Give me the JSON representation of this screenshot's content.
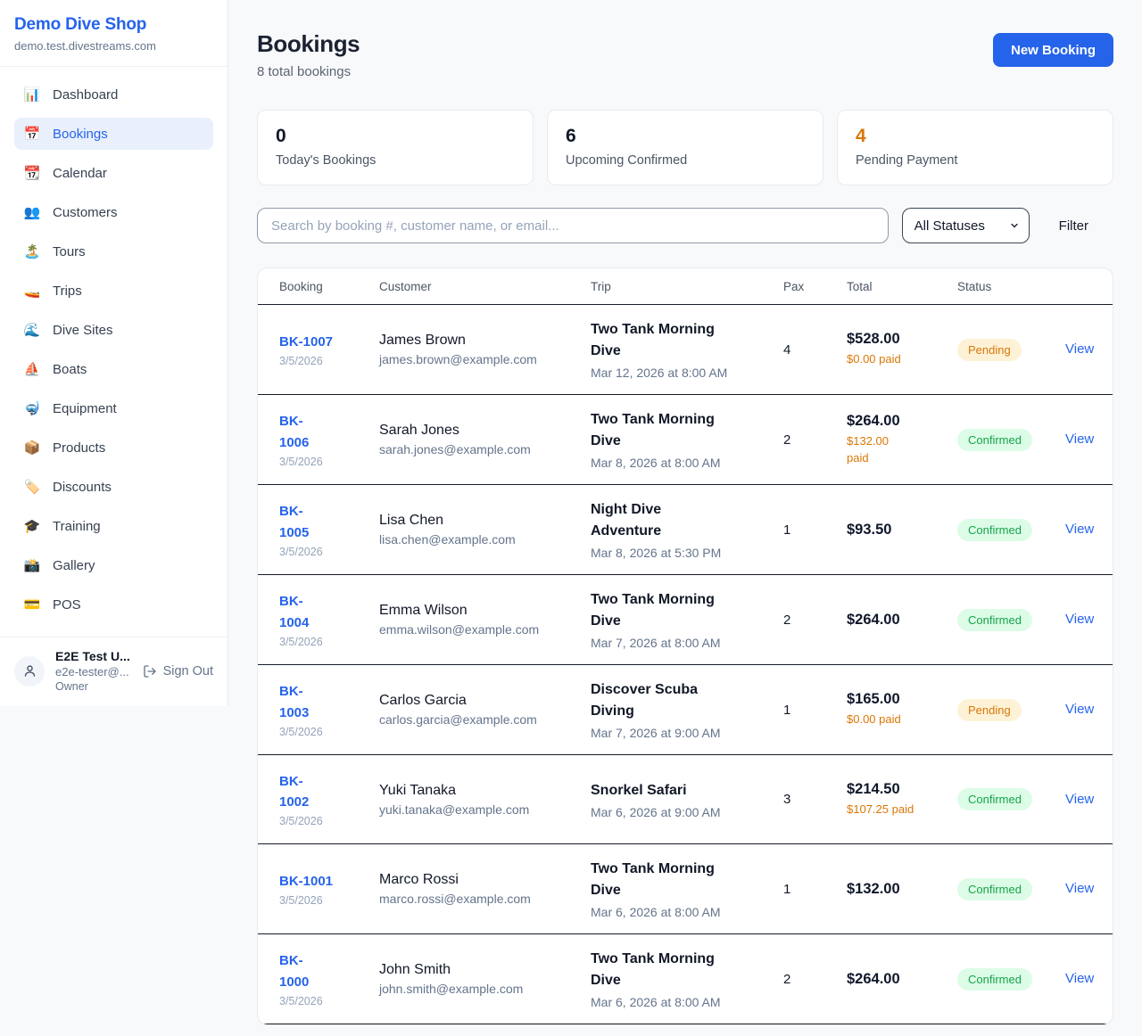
{
  "brand": {
    "name": "Demo Dive Shop",
    "domain": "demo.test.divestreams.com"
  },
  "sidebar": {
    "items": [
      {
        "label": "Dashboard",
        "icon": "📊",
        "icon_name": "bar-chart-icon"
      },
      {
        "label": "Bookings",
        "icon": "📅",
        "icon_name": "calendar-icon",
        "active": true
      },
      {
        "label": "Calendar",
        "icon": "📆",
        "icon_name": "tear-off-calendar-icon"
      },
      {
        "label": "Customers",
        "icon": "👥",
        "icon_name": "people-icon"
      },
      {
        "label": "Tours",
        "icon": "🏝️",
        "icon_name": "island-icon"
      },
      {
        "label": "Trips",
        "icon": "🚤",
        "icon_name": "speedboat-icon"
      },
      {
        "label": "Dive Sites",
        "icon": "🌊",
        "icon_name": "wave-icon"
      },
      {
        "label": "Boats",
        "icon": "⛵",
        "icon_name": "sailboat-icon"
      },
      {
        "label": "Equipment",
        "icon": "🤿",
        "icon_name": "diving-mask-icon"
      },
      {
        "label": "Products",
        "icon": "📦",
        "icon_name": "package-icon"
      },
      {
        "label": "Discounts",
        "icon": "🏷️",
        "icon_name": "tag-icon"
      },
      {
        "label": "Training",
        "icon": "🎓",
        "icon_name": "graduation-cap-icon"
      },
      {
        "label": "Gallery",
        "icon": "📸",
        "icon_name": "camera-icon"
      },
      {
        "label": "POS",
        "icon": "💳",
        "icon_name": "credit-card-icon"
      }
    ],
    "user": {
      "name": "E2E Test U...",
      "email": "e2e-tester@...",
      "role": "Owner",
      "sign_out": "Sign Out"
    }
  },
  "header": {
    "title": "Bookings",
    "subtitle": "8 total bookings",
    "new_booking": "New Booking"
  },
  "stats": [
    {
      "value": "0",
      "label": "Today's Bookings",
      "color": "#111827"
    },
    {
      "value": "6",
      "label": "Upcoming Confirmed",
      "color": "#111827"
    },
    {
      "value": "4",
      "label": "Pending Payment",
      "color": "#d97706"
    }
  ],
  "filters": {
    "search_placeholder": "Search by booking #, customer name, or email...",
    "status_select": "All Statuses",
    "filter_button": "Filter"
  },
  "table": {
    "headers": [
      "Booking",
      "Customer",
      "Trip",
      "Pax",
      "Total",
      "Status"
    ],
    "view_label": "View",
    "status_styles": {
      "Pending": {
        "bg": "#fdf2d6",
        "color": "#d97706"
      },
      "Confirmed": {
        "bg": "#dcfce7",
        "color": "#16a34a"
      }
    },
    "rows": [
      {
        "id": "BK-1007",
        "id_wrapped": false,
        "date": "3/5/2026",
        "customer": "James Brown",
        "email": "james.brown@example.com",
        "trip": "Two Tank Morning Dive",
        "trip_datetime": "Mar 12, 2026 at 8:00 AM",
        "pax": "4",
        "total": "$528.00",
        "paid": "$0.00 paid",
        "paid_wrapped": false,
        "status": "Pending"
      },
      {
        "id": "BK-1006",
        "id_wrapped": true,
        "date": "3/5/2026",
        "customer": "Sarah Jones",
        "email": "sarah.jones@example.com",
        "trip": "Two Tank Morning Dive",
        "trip_datetime": "Mar 8, 2026 at 8:00 AM",
        "pax": "2",
        "total": "$264.00",
        "paid": "$132.00 paid",
        "paid_wrapped": true,
        "status": "Confirmed"
      },
      {
        "id": "BK-1005",
        "id_wrapped": true,
        "date": "3/5/2026",
        "customer": "Lisa Chen",
        "email": "lisa.chen@example.com",
        "trip": "Night Dive Adventure",
        "trip_datetime": "Mar 8, 2026 at 5:30 PM",
        "pax": "1",
        "total": "$93.50",
        "paid": null,
        "paid_wrapped": false,
        "status": "Confirmed"
      },
      {
        "id": "BK-1004",
        "id_wrapped": true,
        "date": "3/5/2026",
        "customer": "Emma Wilson",
        "email": "emma.wilson@example.com",
        "trip": "Two Tank Morning Dive",
        "trip_datetime": "Mar 7, 2026 at 8:00 AM",
        "pax": "2",
        "total": "$264.00",
        "paid": null,
        "paid_wrapped": false,
        "status": "Confirmed"
      },
      {
        "id": "BK-1003",
        "id_wrapped": true,
        "date": "3/5/2026",
        "customer": "Carlos Garcia",
        "email": "carlos.garcia@example.com",
        "trip": "Discover Scuba Diving",
        "trip_datetime": "Mar 7, 2026 at 9:00 AM",
        "pax": "1",
        "total": "$165.00",
        "paid": "$0.00 paid",
        "paid_wrapped": false,
        "status": "Pending"
      },
      {
        "id": "BK-1002",
        "id_wrapped": true,
        "date": "3/5/2026",
        "customer": "Yuki Tanaka",
        "email": "yuki.tanaka@example.com",
        "trip": "Snorkel Safari",
        "trip_datetime": "Mar 6, 2026 at 9:00 AM",
        "pax": "3",
        "total": "$214.50",
        "paid": "$107.25 paid",
        "paid_wrapped": false,
        "status": "Confirmed"
      },
      {
        "id": "BK-1001",
        "id_wrapped": false,
        "date": "3/5/2026",
        "customer": "Marco Rossi",
        "email": "marco.rossi@example.com",
        "trip": "Two Tank Morning Dive",
        "trip_datetime": "Mar 6, 2026 at 8:00 AM",
        "pax": "1",
        "total": "$132.00",
        "paid": null,
        "paid_wrapped": false,
        "status": "Confirmed"
      },
      {
        "id": "BK-1000",
        "id_wrapped": true,
        "date": "3/5/2026",
        "customer": "John Smith",
        "email": "john.smith@example.com",
        "trip": "Two Tank Morning Dive",
        "trip_datetime": "Mar 6, 2026 at 8:00 AM",
        "pax": "2",
        "total": "$264.00",
        "paid": null,
        "paid_wrapped": false,
        "status": "Confirmed"
      }
    ]
  }
}
